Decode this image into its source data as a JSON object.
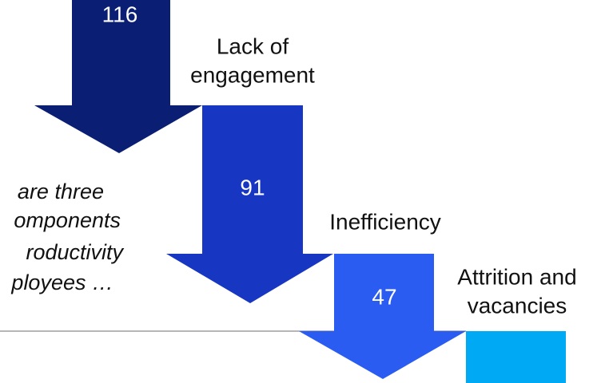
{
  "intro_lines": [
    "are three",
    "omponents",
    "roductivity",
    "ployees …"
  ],
  "steps": [
    {
      "value": "116",
      "label_lines": [
        "Lack of",
        "engagement"
      ]
    },
    {
      "value": "91",
      "label_lines": [
        "Inefficiency"
      ]
    },
    {
      "value": "47",
      "label_lines": [
        "Attrition and",
        "vacancies"
      ]
    }
  ]
}
